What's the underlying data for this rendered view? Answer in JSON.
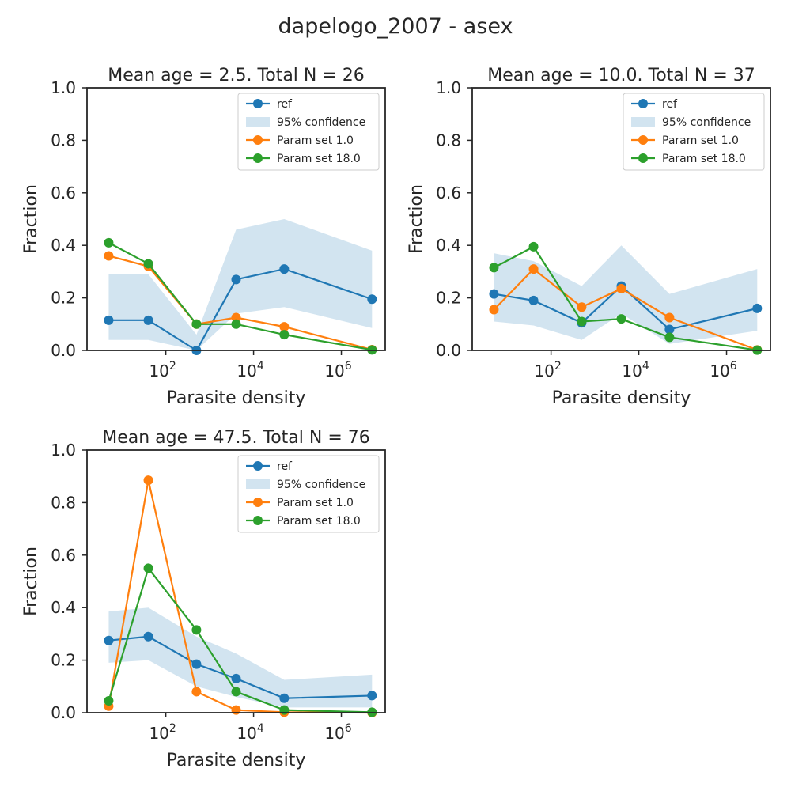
{
  "figure_title": "dapelogo_2007 - asex",
  "chart_data": [
    {
      "type": "line",
      "title": "Mean age = 2.5.  Total N = 26",
      "xlabel": "Parasite density",
      "ylabel": "Fraction",
      "xscale": "log",
      "xlim": [
        1.6,
        10000000
      ],
      "ylim": [
        0,
        1
      ],
      "x": [
        5,
        40,
        500,
        4000,
        50000,
        5000000
      ],
      "xtick_labels": [
        {
          "base": "10",
          "exp": "2",
          "value": 100
        },
        {
          "base": "10",
          "exp": "4",
          "value": 10000
        },
        {
          "base": "10",
          "exp": "6",
          "value": 1000000
        }
      ],
      "yticks": [
        "0.0",
        "0.2",
        "0.4",
        "0.6",
        "0.8",
        "1.0"
      ],
      "confidence_band": {
        "name": "95% confidence",
        "lower": [
          0.04,
          0.04,
          0.0,
          0.14,
          0.165,
          0.085
        ],
        "upper": [
          0.29,
          0.29,
          0.06,
          0.46,
          0.5,
          0.38
        ]
      },
      "series": [
        {
          "name": "ref",
          "values": [
            0.115,
            0.115,
            0.0,
            0.27,
            0.31,
            0.195
          ]
        },
        {
          "name": "Param set 1.0",
          "values": [
            0.36,
            0.32,
            0.1,
            0.125,
            0.09,
            0.003
          ]
        },
        {
          "name": "Param set 18.0",
          "values": [
            0.41,
            0.33,
            0.1,
            0.1,
            0.06,
            0.002
          ]
        }
      ],
      "legend": "top-right"
    },
    {
      "type": "line",
      "title": "Mean age = 10.0.  Total N = 37",
      "xlabel": "Parasite density",
      "ylabel": "Fraction",
      "xscale": "log",
      "xlim": [
        1.6,
        10000000
      ],
      "ylim": [
        0,
        1
      ],
      "x": [
        5,
        40,
        500,
        4000,
        50000,
        5000000
      ],
      "xtick_labels": [
        {
          "base": "10",
          "exp": "2",
          "value": 100
        },
        {
          "base": "10",
          "exp": "4",
          "value": 10000
        },
        {
          "base": "10",
          "exp": "6",
          "value": 1000000
        }
      ],
      "yticks": [
        "0.0",
        "0.2",
        "0.4",
        "0.6",
        "0.8",
        "1.0"
      ],
      "confidence_band": {
        "name": "95% confidence",
        "lower": [
          0.11,
          0.095,
          0.04,
          0.14,
          0.025,
          0.075
        ],
        "upper": [
          0.37,
          0.34,
          0.245,
          0.4,
          0.215,
          0.31
        ]
      },
      "series": [
        {
          "name": "ref",
          "values": [
            0.215,
            0.19,
            0.105,
            0.245,
            0.08,
            0.16
          ]
        },
        {
          "name": "Param set 1.0",
          "values": [
            0.155,
            0.31,
            0.165,
            0.235,
            0.125,
            0.002
          ]
        },
        {
          "name": "Param set 18.0",
          "values": [
            0.315,
            0.395,
            0.11,
            0.12,
            0.05,
            0.001
          ]
        }
      ],
      "legend": "top-right"
    },
    {
      "type": "line",
      "title": "Mean age = 47.5.  Total N = 76",
      "xlabel": "Parasite density",
      "ylabel": "Fraction",
      "xscale": "log",
      "xlim": [
        1.6,
        10000000
      ],
      "ylim": [
        0,
        1
      ],
      "x": [
        5,
        40,
        500,
        4000,
        50000,
        5000000
      ],
      "xtick_labels": [
        {
          "base": "10",
          "exp": "2",
          "value": 100
        },
        {
          "base": "10",
          "exp": "4",
          "value": 10000
        },
        {
          "base": "10",
          "exp": "6",
          "value": 1000000
        }
      ],
      "yticks": [
        "0.0",
        "0.2",
        "0.4",
        "0.6",
        "0.8",
        "1.0"
      ],
      "confidence_band": {
        "name": "95% confidence",
        "lower": [
          0.19,
          0.2,
          0.1,
          0.06,
          0.02,
          0.02
        ],
        "upper": [
          0.385,
          0.4,
          0.29,
          0.225,
          0.125,
          0.145
        ]
      },
      "series": [
        {
          "name": "ref",
          "values": [
            0.275,
            0.29,
            0.185,
            0.13,
            0.055,
            0.065
          ]
        },
        {
          "name": "Param set 1.0",
          "values": [
            0.025,
            0.885,
            0.08,
            0.01,
            0.002,
            0.0
          ]
        },
        {
          "name": "Param set 18.0",
          "values": [
            0.045,
            0.55,
            0.315,
            0.08,
            0.01,
            0.002
          ]
        }
      ],
      "legend": "top-right"
    }
  ],
  "colors": {
    "ref": "#1f77b4",
    "confidence": "#1f77b4",
    "param_1": "#ff7f0e",
    "param_18": "#2ca02c",
    "axes": "#262626"
  }
}
